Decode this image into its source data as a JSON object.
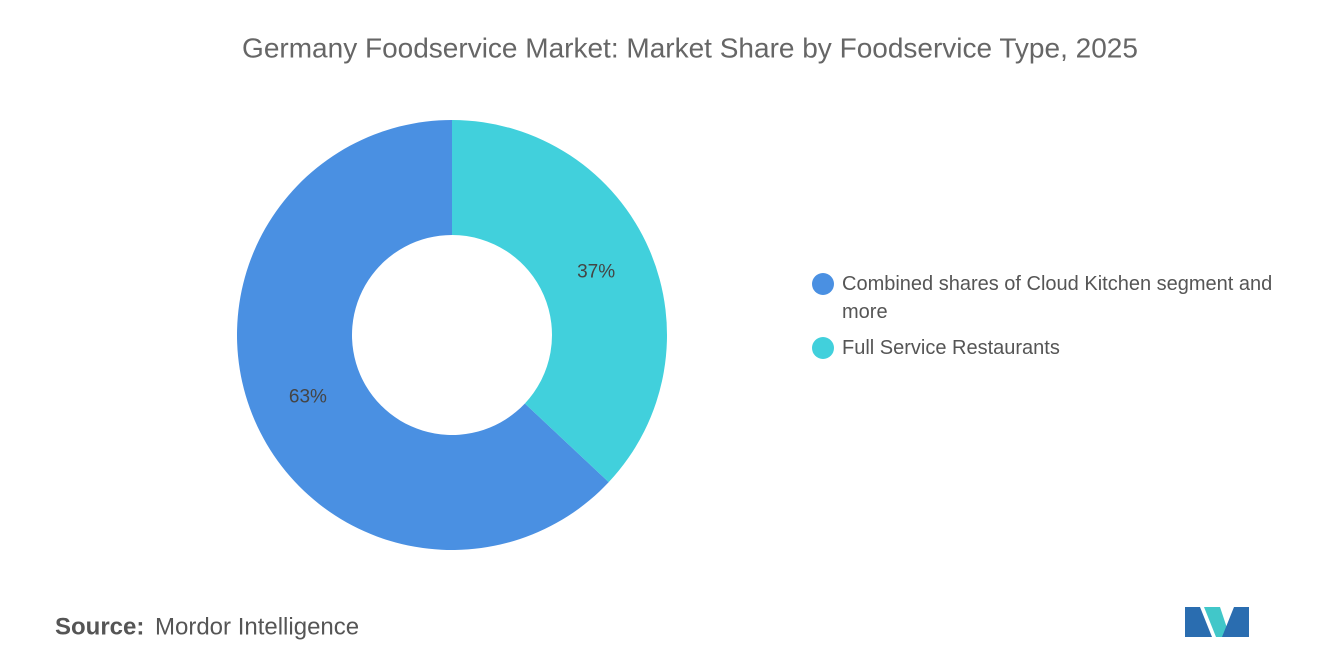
{
  "chart_data": {
    "type": "pie",
    "title": "Germany Foodservice Market: Market Share by Foodservice Type, 2025",
    "categories": [
      "Combined shares of Cloud Kitchen segment and more",
      "Full Service Restaurants"
    ],
    "values": [
      63,
      37
    ],
    "value_labels": [
      "63%",
      "37%"
    ],
    "colors": [
      "#4a90e2",
      "#41d0dc"
    ]
  },
  "source": {
    "label": "Source:",
    "text": "Mordor Intelligence"
  }
}
